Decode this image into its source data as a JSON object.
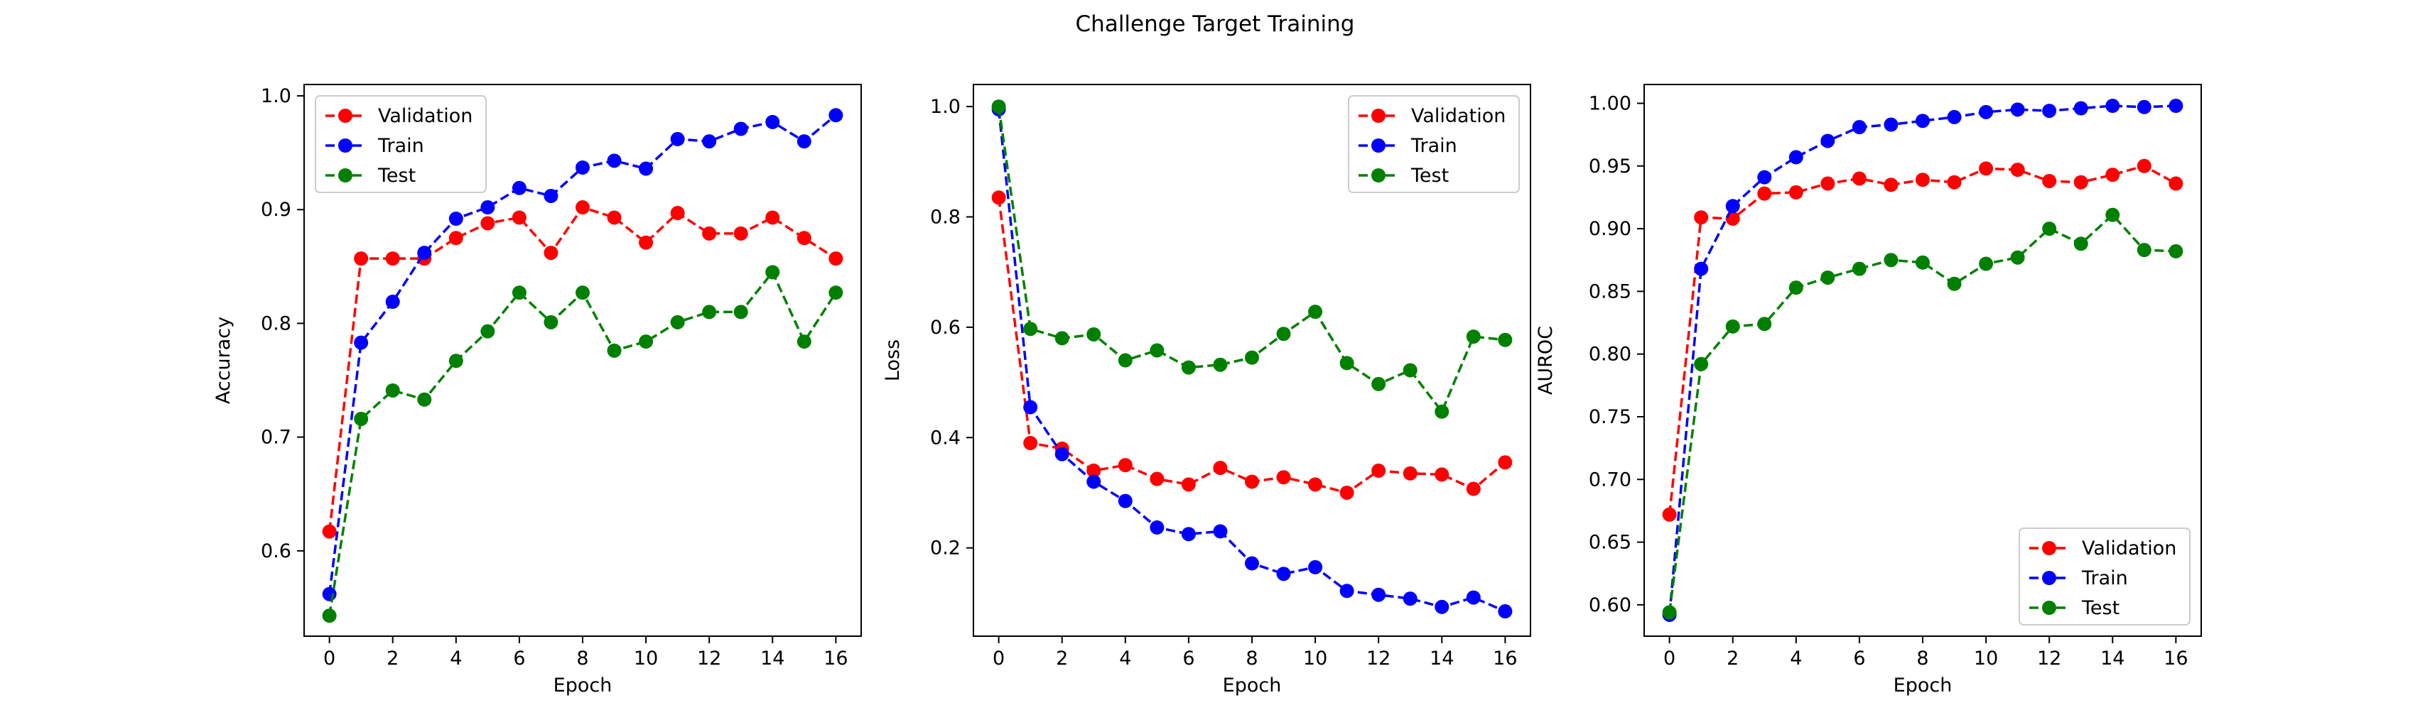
{
  "figure": {
    "title": "Challenge Target Training"
  },
  "chart_data": [
    {
      "type": "line",
      "title": "",
      "xlabel": "Epoch",
      "ylabel": "Accuracy",
      "xlim": [
        -0.8,
        16.8
      ],
      "ylim": [
        0.525,
        1.01
      ],
      "xticks": [
        0,
        2,
        4,
        6,
        8,
        10,
        12,
        14,
        16
      ],
      "yticks": [
        0.6,
        0.7,
        0.8,
        0.9,
        1.0
      ],
      "ytick_labels": [
        "0.6",
        "0.7",
        "0.8",
        "0.9",
        "1.0"
      ],
      "grid": false,
      "legend": "top-left",
      "x": [
        0,
        1,
        2,
        3,
        4,
        5,
        6,
        7,
        8,
        9,
        10,
        11,
        12,
        13,
        14,
        15,
        16
      ],
      "series": [
        {
          "name": "Validation",
          "color": "#ff0000",
          "line_style": "dashed",
          "marker": "circle",
          "values": [
            0.617,
            0.857,
            0.857,
            0.857,
            0.875,
            0.888,
            0.893,
            0.862,
            0.902,
            0.893,
            0.871,
            0.897,
            0.879,
            0.879,
            0.893,
            0.875,
            0.857
          ]
        },
        {
          "name": "Train",
          "color": "#0000ff",
          "line_style": "dashed",
          "marker": "circle",
          "values": [
            0.562,
            0.783,
            0.819,
            0.862,
            0.892,
            0.902,
            0.919,
            0.912,
            0.937,
            0.943,
            0.936,
            0.962,
            0.96,
            0.971,
            0.977,
            0.96,
            0.983
          ]
        },
        {
          "name": "Test",
          "color": "#008000",
          "line_style": "dashed",
          "marker": "circle",
          "values": [
            0.543,
            0.716,
            0.741,
            0.733,
            0.767,
            0.793,
            0.827,
            0.801,
            0.827,
            0.776,
            0.784,
            0.801,
            0.81,
            0.81,
            0.845,
            0.784,
            0.827
          ]
        }
      ]
    },
    {
      "type": "line",
      "title": "",
      "xlabel": "Epoch",
      "ylabel": "Loss",
      "xlim": [
        -0.8,
        16.8
      ],
      "ylim": [
        0.04,
        1.04
      ],
      "xticks": [
        0,
        2,
        4,
        6,
        8,
        10,
        12,
        14,
        16
      ],
      "yticks": [
        0.2,
        0.4,
        0.6,
        0.8,
        1.0
      ],
      "ytick_labels": [
        "0.2",
        "0.4",
        "0.6",
        "0.8",
        "1.0"
      ],
      "grid": false,
      "legend": "top-right",
      "x": [
        0,
        1,
        2,
        3,
        4,
        5,
        6,
        7,
        8,
        9,
        10,
        11,
        12,
        13,
        14,
        15,
        16
      ],
      "series": [
        {
          "name": "Validation",
          "color": "#ff0000",
          "line_style": "dashed",
          "marker": "circle",
          "values": [
            0.835,
            0.39,
            0.38,
            0.34,
            0.35,
            0.325,
            0.315,
            0.345,
            0.32,
            0.328,
            0.315,
            0.3,
            0.34,
            0.335,
            0.333,
            0.307,
            0.355
          ]
        },
        {
          "name": "Train",
          "color": "#0000ff",
          "line_style": "dashed",
          "marker": "circle",
          "values": [
            0.995,
            0.455,
            0.37,
            0.32,
            0.285,
            0.237,
            0.225,
            0.23,
            0.172,
            0.153,
            0.165,
            0.122,
            0.115,
            0.108,
            0.093,
            0.11,
            0.085
          ]
        },
        {
          "name": "Test",
          "color": "#008000",
          "line_style": "dashed",
          "marker": "circle",
          "values": [
            1.0,
            0.597,
            0.58,
            0.587,
            0.54,
            0.558,
            0.527,
            0.532,
            0.545,
            0.588,
            0.628,
            0.535,
            0.497,
            0.522,
            0.447,
            0.583,
            0.577
          ]
        }
      ]
    },
    {
      "type": "line",
      "title": "",
      "xlabel": "Epoch",
      "ylabel": "AUROC",
      "xlim": [
        -0.8,
        16.8
      ],
      "ylim": [
        0.575,
        1.015
      ],
      "xticks": [
        0,
        2,
        4,
        6,
        8,
        10,
        12,
        14,
        16
      ],
      "yticks": [
        0.6,
        0.65,
        0.7,
        0.75,
        0.8,
        0.85,
        0.9,
        0.95,
        1.0
      ],
      "ytick_labels": [
        "0.60",
        "0.65",
        "0.70",
        "0.75",
        "0.80",
        "0.85",
        "0.90",
        "0.95",
        "1.00"
      ],
      "grid": false,
      "legend": "bottom-right",
      "x": [
        0,
        1,
        2,
        3,
        4,
        5,
        6,
        7,
        8,
        9,
        10,
        11,
        12,
        13,
        14,
        15,
        16
      ],
      "series": [
        {
          "name": "Validation",
          "color": "#ff0000",
          "line_style": "dashed",
          "marker": "circle",
          "values": [
            0.672,
            0.909,
            0.908,
            0.928,
            0.929,
            0.936,
            0.94,
            0.935,
            0.939,
            0.937,
            0.948,
            0.947,
            0.938,
            0.937,
            0.943,
            0.95,
            0.936
          ]
        },
        {
          "name": "Train",
          "color": "#0000ff",
          "line_style": "dashed",
          "marker": "circle",
          "values": [
            0.592,
            0.868,
            0.918,
            0.941,
            0.957,
            0.97,
            0.981,
            0.983,
            0.986,
            0.989,
            0.993,
            0.995,
            0.994,
            0.996,
            0.998,
            0.997,
            0.998
          ]
        },
        {
          "name": "Test",
          "color": "#008000",
          "line_style": "dashed",
          "marker": "circle",
          "values": [
            0.594,
            0.792,
            0.822,
            0.824,
            0.853,
            0.861,
            0.868,
            0.875,
            0.873,
            0.856,
            0.872,
            0.877,
            0.9,
            0.888,
            0.911,
            0.883,
            0.882
          ]
        }
      ]
    }
  ]
}
